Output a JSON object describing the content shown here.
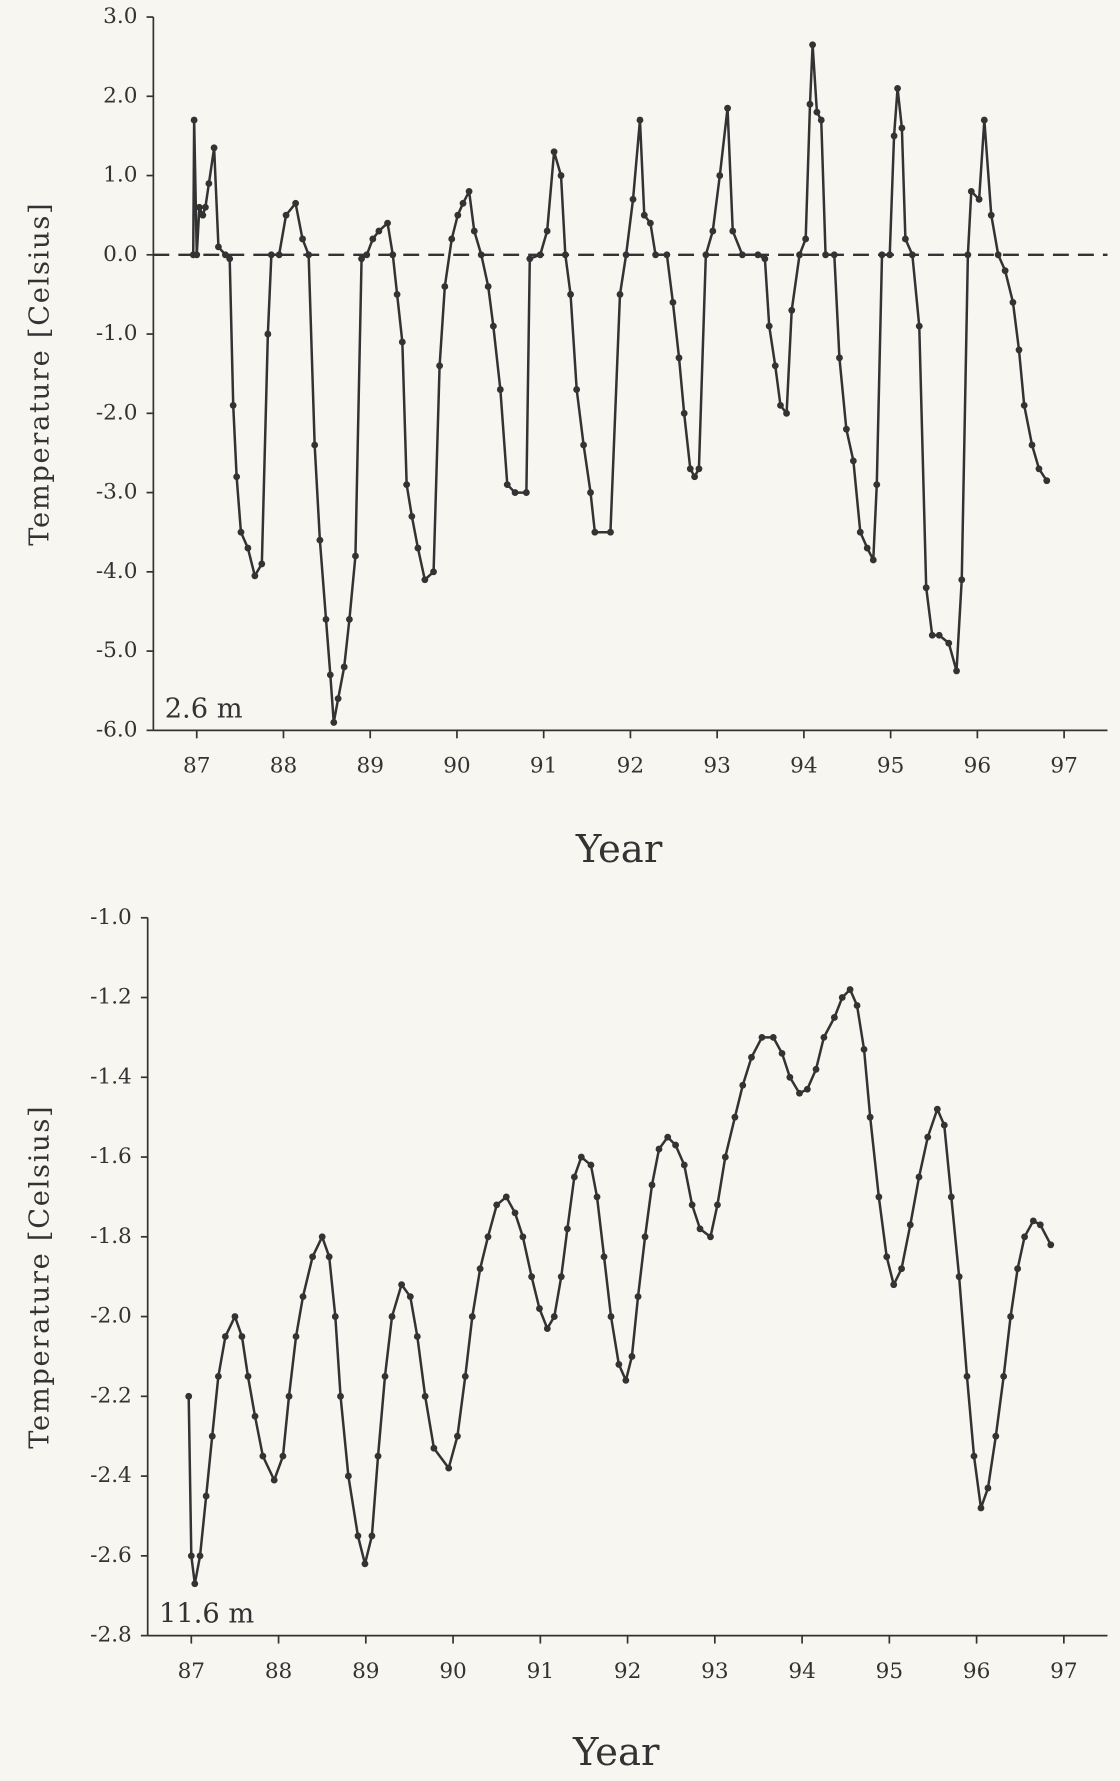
{
  "chart_data": [
    {
      "type": "line",
      "annotation": "2.6 m",
      "ylabel": "Temperature [Celsius]",
      "xlabel": "Year",
      "xlim": [
        86.5,
        97.5
      ],
      "xticks": [
        87,
        88,
        89,
        90,
        91,
        92,
        93,
        94,
        95,
        96,
        97
      ],
      "ylim": [
        -6,
        3
      ],
      "yticks": [
        {
          "value": -6,
          "label": "-6.0"
        },
        {
          "value": -5,
          "label": "-5.0"
        },
        {
          "value": -4,
          "label": "-4.0"
        },
        {
          "value": -3,
          "label": "-3.0"
        },
        {
          "value": -2,
          "label": "-2.0"
        },
        {
          "value": -1,
          "label": "-1.0"
        },
        {
          "value": 0,
          "label": "0.0"
        },
        {
          "value": 1,
          "label": "1.0"
        },
        {
          "value": 2,
          "label": "2.0"
        },
        {
          "value": 3,
          "label": "3.0"
        }
      ],
      "hline": 0,
      "color": "#333333",
      "x": [
        86.96,
        86.97,
        87.0,
        87.03,
        87.07,
        87.1,
        87.14,
        87.2,
        87.25,
        87.33,
        87.38,
        87.42,
        87.46,
        87.51,
        87.59,
        87.67,
        87.75,
        87.82,
        87.86,
        87.95,
        88.03,
        88.14,
        88.22,
        88.29,
        88.36,
        88.42,
        88.49,
        88.54,
        88.58,
        88.63,
        88.7,
        88.76,
        88.83,
        88.9,
        88.96,
        89.03,
        89.1,
        89.2,
        89.26,
        89.31,
        89.37,
        89.42,
        89.48,
        89.55,
        89.63,
        89.73,
        89.8,
        89.86,
        89.94,
        90.01,
        90.07,
        90.14,
        90.2,
        90.28,
        90.36,
        90.42,
        90.5,
        90.58,
        90.67,
        90.8,
        90.84,
        90.96,
        91.04,
        91.12,
        91.2,
        91.25,
        91.31,
        91.38,
        91.46,
        91.54,
        91.59,
        91.77,
        91.88,
        91.95,
        92.03,
        92.11,
        92.16,
        92.23,
        92.29,
        92.42,
        92.49,
        92.56,
        92.62,
        92.69,
        92.74,
        92.79,
        92.87,
        92.95,
        93.03,
        93.12,
        93.18,
        93.29,
        93.47,
        93.55,
        93.6,
        93.67,
        93.73,
        93.8,
        93.86,
        93.95,
        94.02,
        94.07,
        94.1,
        94.15,
        94.2,
        94.25,
        94.35,
        94.41,
        94.49,
        94.57,
        94.65,
        94.73,
        94.8,
        94.84,
        94.9,
        94.99,
        95.04,
        95.08,
        95.13,
        95.17,
        95.25,
        95.33,
        95.41,
        95.48,
        95.56,
        95.67,
        95.76,
        95.82,
        95.89,
        95.93,
        96.02,
        96.08,
        96.16,
        96.24,
        96.32,
        96.41,
        96.48,
        96.54,
        96.63,
        96.71,
        96.8
      ],
      "values": [
        0.0,
        1.7,
        0.0,
        0.6,
        0.5,
        0.6,
        0.9,
        1.35,
        0.1,
        0.0,
        -0.05,
        -1.9,
        -2.8,
        -3.5,
        -3.7,
        -4.05,
        -3.9,
        -1.0,
        0.0,
        0.0,
        0.5,
        0.65,
        0.2,
        0.0,
        -2.4,
        -3.6,
        -4.6,
        -5.3,
        -5.9,
        -5.6,
        -5.2,
        -4.6,
        -3.8,
        -0.05,
        0.0,
        0.2,
        0.3,
        0.4,
        0.0,
        -0.5,
        -1.1,
        -2.9,
        -3.3,
        -3.7,
        -4.1,
        -4.0,
        -1.4,
        -0.4,
        0.2,
        0.5,
        0.65,
        0.8,
        0.3,
        0.0,
        -0.4,
        -0.9,
        -1.7,
        -2.9,
        -3.0,
        -3.0,
        -0.05,
        0.0,
        0.3,
        1.3,
        1.0,
        0.0,
        -0.5,
        -1.7,
        -2.4,
        -3.0,
        -3.5,
        -3.5,
        -0.5,
        0.0,
        0.7,
        1.7,
        0.5,
        0.4,
        0.0,
        0.0,
        -0.6,
        -1.3,
        -2.0,
        -2.7,
        -2.8,
        -2.7,
        0.0,
        0.3,
        1.0,
        1.85,
        0.3,
        0.0,
        0.0,
        -0.05,
        -0.9,
        -1.4,
        -1.9,
        -2.0,
        -0.7,
        0.0,
        0.2,
        1.9,
        2.65,
        1.8,
        1.7,
        0.0,
        0.0,
        -1.3,
        -2.2,
        -2.6,
        -3.5,
        -3.7,
        -3.85,
        -2.9,
        0.0,
        0.0,
        1.5,
        2.1,
        1.6,
        0.2,
        0.0,
        -0.9,
        -4.2,
        -4.8,
        -4.8,
        -4.9,
        -5.25,
        -4.1,
        0.0,
        0.8,
        0.7,
        1.7,
        0.5,
        0.0,
        -0.2,
        -0.6,
        -1.2,
        -1.9,
        -2.4,
        -2.7,
        -2.85
      ]
    },
    {
      "type": "line",
      "annotation": "11.6 m",
      "ylabel": "Temperature [Celsius]",
      "xlabel": "Year",
      "xlim": [
        86.5,
        97.5
      ],
      "xticks": [
        87,
        88,
        89,
        90,
        91,
        92,
        93,
        94,
        95,
        96,
        97
      ],
      "ylim": [
        -2.8,
        -1.0
      ],
      "yticks": [
        {
          "value": -2.8,
          "label": "-2.8"
        },
        {
          "value": -2.6,
          "label": "-2.6"
        },
        {
          "value": -2.4,
          "label": "-2.4"
        },
        {
          "value": -2.2,
          "label": "-2.2"
        },
        {
          "value": -2.0,
          "label": "-2.0"
        },
        {
          "value": -1.8,
          "label": "-1.8"
        },
        {
          "value": -1.6,
          "label": "-1.6"
        },
        {
          "value": -1.4,
          "label": "-1.4"
        },
        {
          "value": -1.2,
          "label": "-1.2"
        },
        {
          "value": -1.0,
          "label": "-1.0"
        }
      ],
      "color": "#333333",
      "x": [
        86.97,
        87.0,
        87.04,
        87.1,
        87.17,
        87.24,
        87.31,
        87.39,
        87.5,
        87.58,
        87.65,
        87.73,
        87.82,
        87.95,
        88.05,
        88.12,
        88.2,
        88.28,
        88.39,
        88.5,
        88.58,
        88.65,
        88.71,
        88.8,
        88.91,
        88.99,
        89.07,
        89.14,
        89.22,
        89.3,
        89.41,
        89.51,
        89.59,
        89.68,
        89.78,
        89.95,
        90.05,
        90.14,
        90.22,
        90.31,
        90.4,
        90.5,
        90.61,
        90.71,
        90.8,
        90.9,
        90.99,
        91.08,
        91.16,
        91.24,
        91.31,
        91.39,
        91.47,
        91.58,
        91.65,
        91.73,
        91.81,
        91.9,
        91.98,
        92.05,
        92.12,
        92.2,
        92.28,
        92.36,
        92.46,
        92.55,
        92.65,
        92.74,
        92.83,
        92.95,
        93.03,
        93.12,
        93.23,
        93.32,
        93.42,
        93.54,
        93.67,
        93.77,
        93.86,
        93.97,
        94.06,
        94.16,
        94.25,
        94.37,
        94.46,
        94.55,
        94.63,
        94.71,
        94.78,
        94.88,
        94.97,
        95.05,
        95.14,
        95.24,
        95.34,
        95.44,
        95.55,
        95.63,
        95.71,
        95.8,
        95.89,
        95.97,
        96.05,
        96.13,
        96.22,
        96.31,
        96.39,
        96.47,
        96.55,
        96.65,
        96.73,
        96.85
      ],
      "values": [
        -2.2,
        -2.6,
        -2.67,
        -2.6,
        -2.45,
        -2.3,
        -2.15,
        -2.05,
        -2.0,
        -2.05,
        -2.15,
        -2.25,
        -2.35,
        -2.41,
        -2.35,
        -2.2,
        -2.05,
        -1.95,
        -1.85,
        -1.8,
        -1.85,
        -2.0,
        -2.2,
        -2.4,
        -2.55,
        -2.62,
        -2.55,
        -2.35,
        -2.15,
        -2.0,
        -1.92,
        -1.95,
        -2.05,
        -2.2,
        -2.33,
        -2.38,
        -2.3,
        -2.15,
        -2.0,
        -1.88,
        -1.8,
        -1.72,
        -1.7,
        -1.74,
        -1.8,
        -1.9,
        -1.98,
        -2.03,
        -2.0,
        -1.9,
        -1.78,
        -1.65,
        -1.6,
        -1.62,
        -1.7,
        -1.85,
        -2.0,
        -2.12,
        -2.16,
        -2.1,
        -1.95,
        -1.8,
        -1.67,
        -1.58,
        -1.55,
        -1.57,
        -1.62,
        -1.72,
        -1.78,
        -1.8,
        -1.72,
        -1.6,
        -1.5,
        -1.42,
        -1.35,
        -1.3,
        -1.3,
        -1.34,
        -1.4,
        -1.44,
        -1.43,
        -1.38,
        -1.3,
        -1.25,
        -1.2,
        -1.18,
        -1.22,
        -1.33,
        -1.5,
        -1.7,
        -1.85,
        -1.92,
        -1.88,
        -1.77,
        -1.65,
        -1.55,
        -1.48,
        -1.52,
        -1.7,
        -1.9,
        -2.15,
        -2.35,
        -2.48,
        -2.43,
        -2.3,
        -2.15,
        -2.0,
        -1.88,
        -1.8,
        -1.76,
        -1.77,
        -1.82
      ]
    }
  ]
}
